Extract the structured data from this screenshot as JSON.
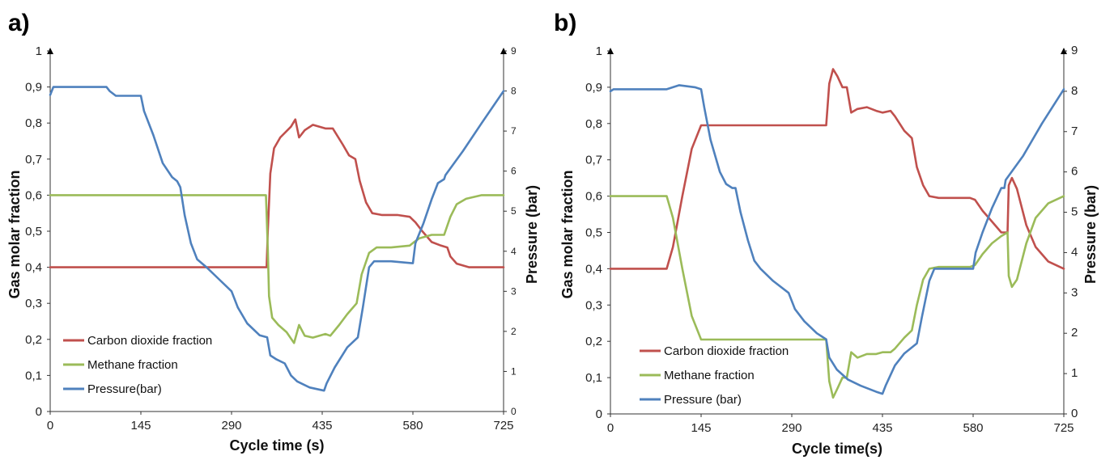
{
  "chart_data": [
    {
      "type": "line",
      "panel_label": "a)",
      "xlabel": "Cycle time (s)",
      "ylabel": "Gas molar fraction",
      "y2label": "Pressure  (bar)",
      "xlim": [
        0,
        725
      ],
      "ylim": [
        0,
        1
      ],
      "y2lim": [
        0,
        9
      ],
      "x_ticks": [
        0,
        145,
        290,
        435,
        580,
        725
      ],
      "y_ticks": [
        "0",
        "0,1",
        "0,2",
        "0,3",
        "0,4",
        "0,5",
        "0,6",
        "0,7",
        "0,8",
        "0,9",
        "1"
      ],
      "y2_ticks": [
        "0",
        "1",
        "2",
        "3",
        "4",
        "5",
        "6",
        "7",
        "8",
        "9"
      ],
      "legend": "bottom-left",
      "series": [
        {
          "name": "Carbon dioxide fraction",
          "color": "#c0504d",
          "axis": "y",
          "points": [
            [
              0,
              0.4
            ],
            [
              100,
              0.4
            ],
            [
              200,
              0.4
            ],
            [
              300,
              0.4
            ],
            [
              346,
              0.4
            ],
            [
              348,
              0.5
            ],
            [
              352,
              0.66
            ],
            [
              358,
              0.73
            ],
            [
              368,
              0.76
            ],
            [
              385,
              0.79
            ],
            [
              392,
              0.81
            ],
            [
              398,
              0.76
            ],
            [
              407,
              0.78
            ],
            [
              420,
              0.795
            ],
            [
              440,
              0.785
            ],
            [
              452,
              0.785
            ],
            [
              468,
              0.74
            ],
            [
              478,
              0.71
            ],
            [
              488,
              0.7
            ],
            [
              495,
              0.64
            ],
            [
              505,
              0.58
            ],
            [
              515,
              0.55
            ],
            [
              530,
              0.545
            ],
            [
              555,
              0.545
            ],
            [
              575,
              0.54
            ],
            [
              584,
              0.525
            ],
            [
              595,
              0.5
            ],
            [
              610,
              0.47
            ],
            [
              625,
              0.46
            ],
            [
              635,
              0.455
            ],
            [
              640,
              0.43
            ],
            [
              650,
              0.41
            ],
            [
              670,
              0.4
            ],
            [
              725,
              0.4
            ]
          ]
        },
        {
          "name": "Methane fraction",
          "color": "#9bbb59",
          "axis": "y",
          "points": [
            [
              0,
              0.6
            ],
            [
              100,
              0.6
            ],
            [
              200,
              0.6
            ],
            [
              300,
              0.6
            ],
            [
              345,
              0.6
            ],
            [
              348,
              0.45
            ],
            [
              350,
              0.32
            ],
            [
              355,
              0.26
            ],
            [
              365,
              0.24
            ],
            [
              378,
              0.22
            ],
            [
              390,
              0.19
            ],
            [
              398,
              0.24
            ],
            [
              407,
              0.21
            ],
            [
              420,
              0.205
            ],
            [
              440,
              0.215
            ],
            [
              448,
              0.21
            ],
            [
              462,
              0.24
            ],
            [
              475,
              0.27
            ],
            [
              490,
              0.3
            ],
            [
              498,
              0.38
            ],
            [
              510,
              0.44
            ],
            [
              522,
              0.455
            ],
            [
              545,
              0.455
            ],
            [
              575,
              0.46
            ],
            [
              582,
              0.47
            ],
            [
              590,
              0.48
            ],
            [
              610,
              0.49
            ],
            [
              630,
              0.49
            ],
            [
              640,
              0.54
            ],
            [
              650,
              0.575
            ],
            [
              665,
              0.59
            ],
            [
              690,
              0.6
            ],
            [
              725,
              0.6
            ]
          ]
        },
        {
          "name": "Pressure(bar)",
          "color": "#4f81bd",
          "axis": "y2",
          "points": [
            [
              0,
              7.9
            ],
            [
              5,
              8.1
            ],
            [
              50,
              8.1
            ],
            [
              90,
              8.1
            ],
            [
              95,
              8.0
            ],
            [
              105,
              7.88
            ],
            [
              145,
              7.88
            ],
            [
              150,
              7.5
            ],
            [
              165,
              6.9
            ],
            [
              180,
              6.2
            ],
            [
              195,
              5.85
            ],
            [
              203,
              5.75
            ],
            [
              208,
              5.6
            ],
            [
              215,
              4.9
            ],
            [
              225,
              4.2
            ],
            [
              235,
              3.8
            ],
            [
              250,
              3.6
            ],
            [
              270,
              3.3
            ],
            [
              290,
              3.0
            ],
            [
              300,
              2.6
            ],
            [
              315,
              2.2
            ],
            [
              335,
              1.9
            ],
            [
              347,
              1.85
            ],
            [
              352,
              1.4
            ],
            [
              362,
              1.3
            ],
            [
              375,
              1.2
            ],
            [
              385,
              0.9
            ],
            [
              395,
              0.75
            ],
            [
              415,
              0.6
            ],
            [
              438,
              0.52
            ],
            [
              442,
              0.7
            ],
            [
              455,
              1.1
            ],
            [
              475,
              1.6
            ],
            [
              492,
              1.85
            ],
            [
              500,
              2.6
            ],
            [
              510,
              3.6
            ],
            [
              518,
              3.75
            ],
            [
              545,
              3.75
            ],
            [
              580,
              3.7
            ],
            [
              584,
              4.2
            ],
            [
              597,
              4.7
            ],
            [
              610,
              5.3
            ],
            [
              620,
              5.7
            ],
            [
              630,
              5.8
            ],
            [
              632,
              5.9
            ],
            [
              660,
              6.5
            ],
            [
              690,
              7.2
            ],
            [
              725,
              8.0
            ]
          ]
        }
      ]
    },
    {
      "type": "line",
      "panel_label": "b)",
      "xlabel": "Cycle time(s)",
      "ylabel": "Gas molar fraction",
      "y2label": "Pressure (bar)",
      "xlim": [
        0,
        725
      ],
      "ylim": [
        0,
        1
      ],
      "y2lim": [
        0,
        9
      ],
      "x_ticks": [
        0,
        145,
        290,
        435,
        580,
        725
      ],
      "y_ticks": [
        "0",
        "0,1",
        "0,2",
        "0,3",
        "0,4",
        "0,5",
        "0,6",
        "0,7",
        "0,8",
        "0,9",
        "1"
      ],
      "y2_ticks": [
        "0",
        "1",
        "2",
        "3",
        "4",
        "5",
        "6",
        "7",
        "8",
        "9"
      ],
      "legend": "bottom-center",
      "series": [
        {
          "name": "Carbon dioxide fraction",
          "color": "#c0504d",
          "axis": "y",
          "points": [
            [
              0,
              0.4
            ],
            [
              40,
              0.4
            ],
            [
              90,
              0.4
            ],
            [
              100,
              0.46
            ],
            [
              115,
              0.6
            ],
            [
              130,
              0.73
            ],
            [
              145,
              0.795
            ],
            [
              200,
              0.795
            ],
            [
              300,
              0.795
            ],
            [
              345,
              0.795
            ],
            [
              350,
              0.91
            ],
            [
              356,
              0.95
            ],
            [
              363,
              0.93
            ],
            [
              371,
              0.9
            ],
            [
              378,
              0.9
            ],
            [
              385,
              0.83
            ],
            [
              395,
              0.84
            ],
            [
              410,
              0.845
            ],
            [
              425,
              0.835
            ],
            [
              435,
              0.83
            ],
            [
              448,
              0.835
            ],
            [
              455,
              0.82
            ],
            [
              470,
              0.78
            ],
            [
              482,
              0.76
            ],
            [
              490,
              0.68
            ],
            [
              500,
              0.63
            ],
            [
              510,
              0.6
            ],
            [
              525,
              0.595
            ],
            [
              555,
              0.595
            ],
            [
              575,
              0.595
            ],
            [
              583,
              0.59
            ],
            [
              595,
              0.56
            ],
            [
              610,
              0.53
            ],
            [
              625,
              0.5
            ],
            [
              635,
              0.5
            ],
            [
              637,
              0.63
            ],
            [
              642,
              0.65
            ],
            [
              650,
              0.62
            ],
            [
              665,
              0.52
            ],
            [
              680,
              0.46
            ],
            [
              700,
              0.42
            ],
            [
              725,
              0.4
            ]
          ]
        },
        {
          "name": "Methane fraction",
          "color": "#9bbb59",
          "axis": "y",
          "points": [
            [
              0,
              0.6
            ],
            [
              40,
              0.6
            ],
            [
              90,
              0.6
            ],
            [
              100,
              0.54
            ],
            [
              115,
              0.4
            ],
            [
              130,
              0.27
            ],
            [
              145,
              0.205
            ],
            [
              200,
              0.205
            ],
            [
              300,
              0.205
            ],
            [
              345,
              0.205
            ],
            [
              350,
              0.09
            ],
            [
              356,
              0.045
            ],
            [
              363,
              0.07
            ],
            [
              371,
              0.1
            ],
            [
              378,
              0.1
            ],
            [
              385,
              0.17
            ],
            [
              395,
              0.155
            ],
            [
              410,
              0.165
            ],
            [
              425,
              0.165
            ],
            [
              435,
              0.17
            ],
            [
              448,
              0.17
            ],
            [
              455,
              0.18
            ],
            [
              470,
              0.21
            ],
            [
              482,
              0.23
            ],
            [
              490,
              0.3
            ],
            [
              500,
              0.37
            ],
            [
              510,
              0.4
            ],
            [
              525,
              0.405
            ],
            [
              555,
              0.405
            ],
            [
              575,
              0.405
            ],
            [
              583,
              0.41
            ],
            [
              595,
              0.44
            ],
            [
              610,
              0.47
            ],
            [
              625,
              0.49
            ],
            [
              635,
              0.5
            ],
            [
              637,
              0.38
            ],
            [
              642,
              0.35
            ],
            [
              650,
              0.37
            ],
            [
              665,
              0.47
            ],
            [
              680,
              0.54
            ],
            [
              700,
              0.58
            ],
            [
              725,
              0.6
            ]
          ]
        },
        {
          "name": "Pressure (bar)",
          "color": "#4f81bd",
          "axis": "y2",
          "points": [
            [
              0,
              8.0
            ],
            [
              5,
              8.05
            ],
            [
              50,
              8.05
            ],
            [
              90,
              8.05
            ],
            [
              100,
              8.1
            ],
            [
              110,
              8.15
            ],
            [
              135,
              8.1
            ],
            [
              145,
              8.05
            ],
            [
              150,
              7.6
            ],
            [
              160,
              6.8
            ],
            [
              175,
              6.0
            ],
            [
              185,
              5.7
            ],
            [
              195,
              5.6
            ],
            [
              200,
              5.6
            ],
            [
              208,
              5.0
            ],
            [
              220,
              4.3
            ],
            [
              230,
              3.8
            ],
            [
              240,
              3.6
            ],
            [
              260,
              3.3
            ],
            [
              285,
              3.0
            ],
            [
              295,
              2.6
            ],
            [
              310,
              2.3
            ],
            [
              330,
              2.0
            ],
            [
              345,
              1.85
            ],
            [
              350,
              1.4
            ],
            [
              362,
              1.1
            ],
            [
              380,
              0.85
            ],
            [
              400,
              0.7
            ],
            [
              425,
              0.55
            ],
            [
              435,
              0.5
            ],
            [
              440,
              0.7
            ],
            [
              455,
              1.2
            ],
            [
              470,
              1.5
            ],
            [
              490,
              1.75
            ],
            [
              498,
              2.4
            ],
            [
              510,
              3.3
            ],
            [
              518,
              3.6
            ],
            [
              545,
              3.6
            ],
            [
              580,
              3.6
            ],
            [
              584,
              4.0
            ],
            [
              595,
              4.5
            ],
            [
              610,
              5.1
            ],
            [
              625,
              5.6
            ],
            [
              630,
              5.6
            ],
            [
              632,
              5.8
            ],
            [
              660,
              6.4
            ],
            [
              690,
              7.2
            ],
            [
              725,
              8.05
            ]
          ]
        }
      ]
    }
  ]
}
